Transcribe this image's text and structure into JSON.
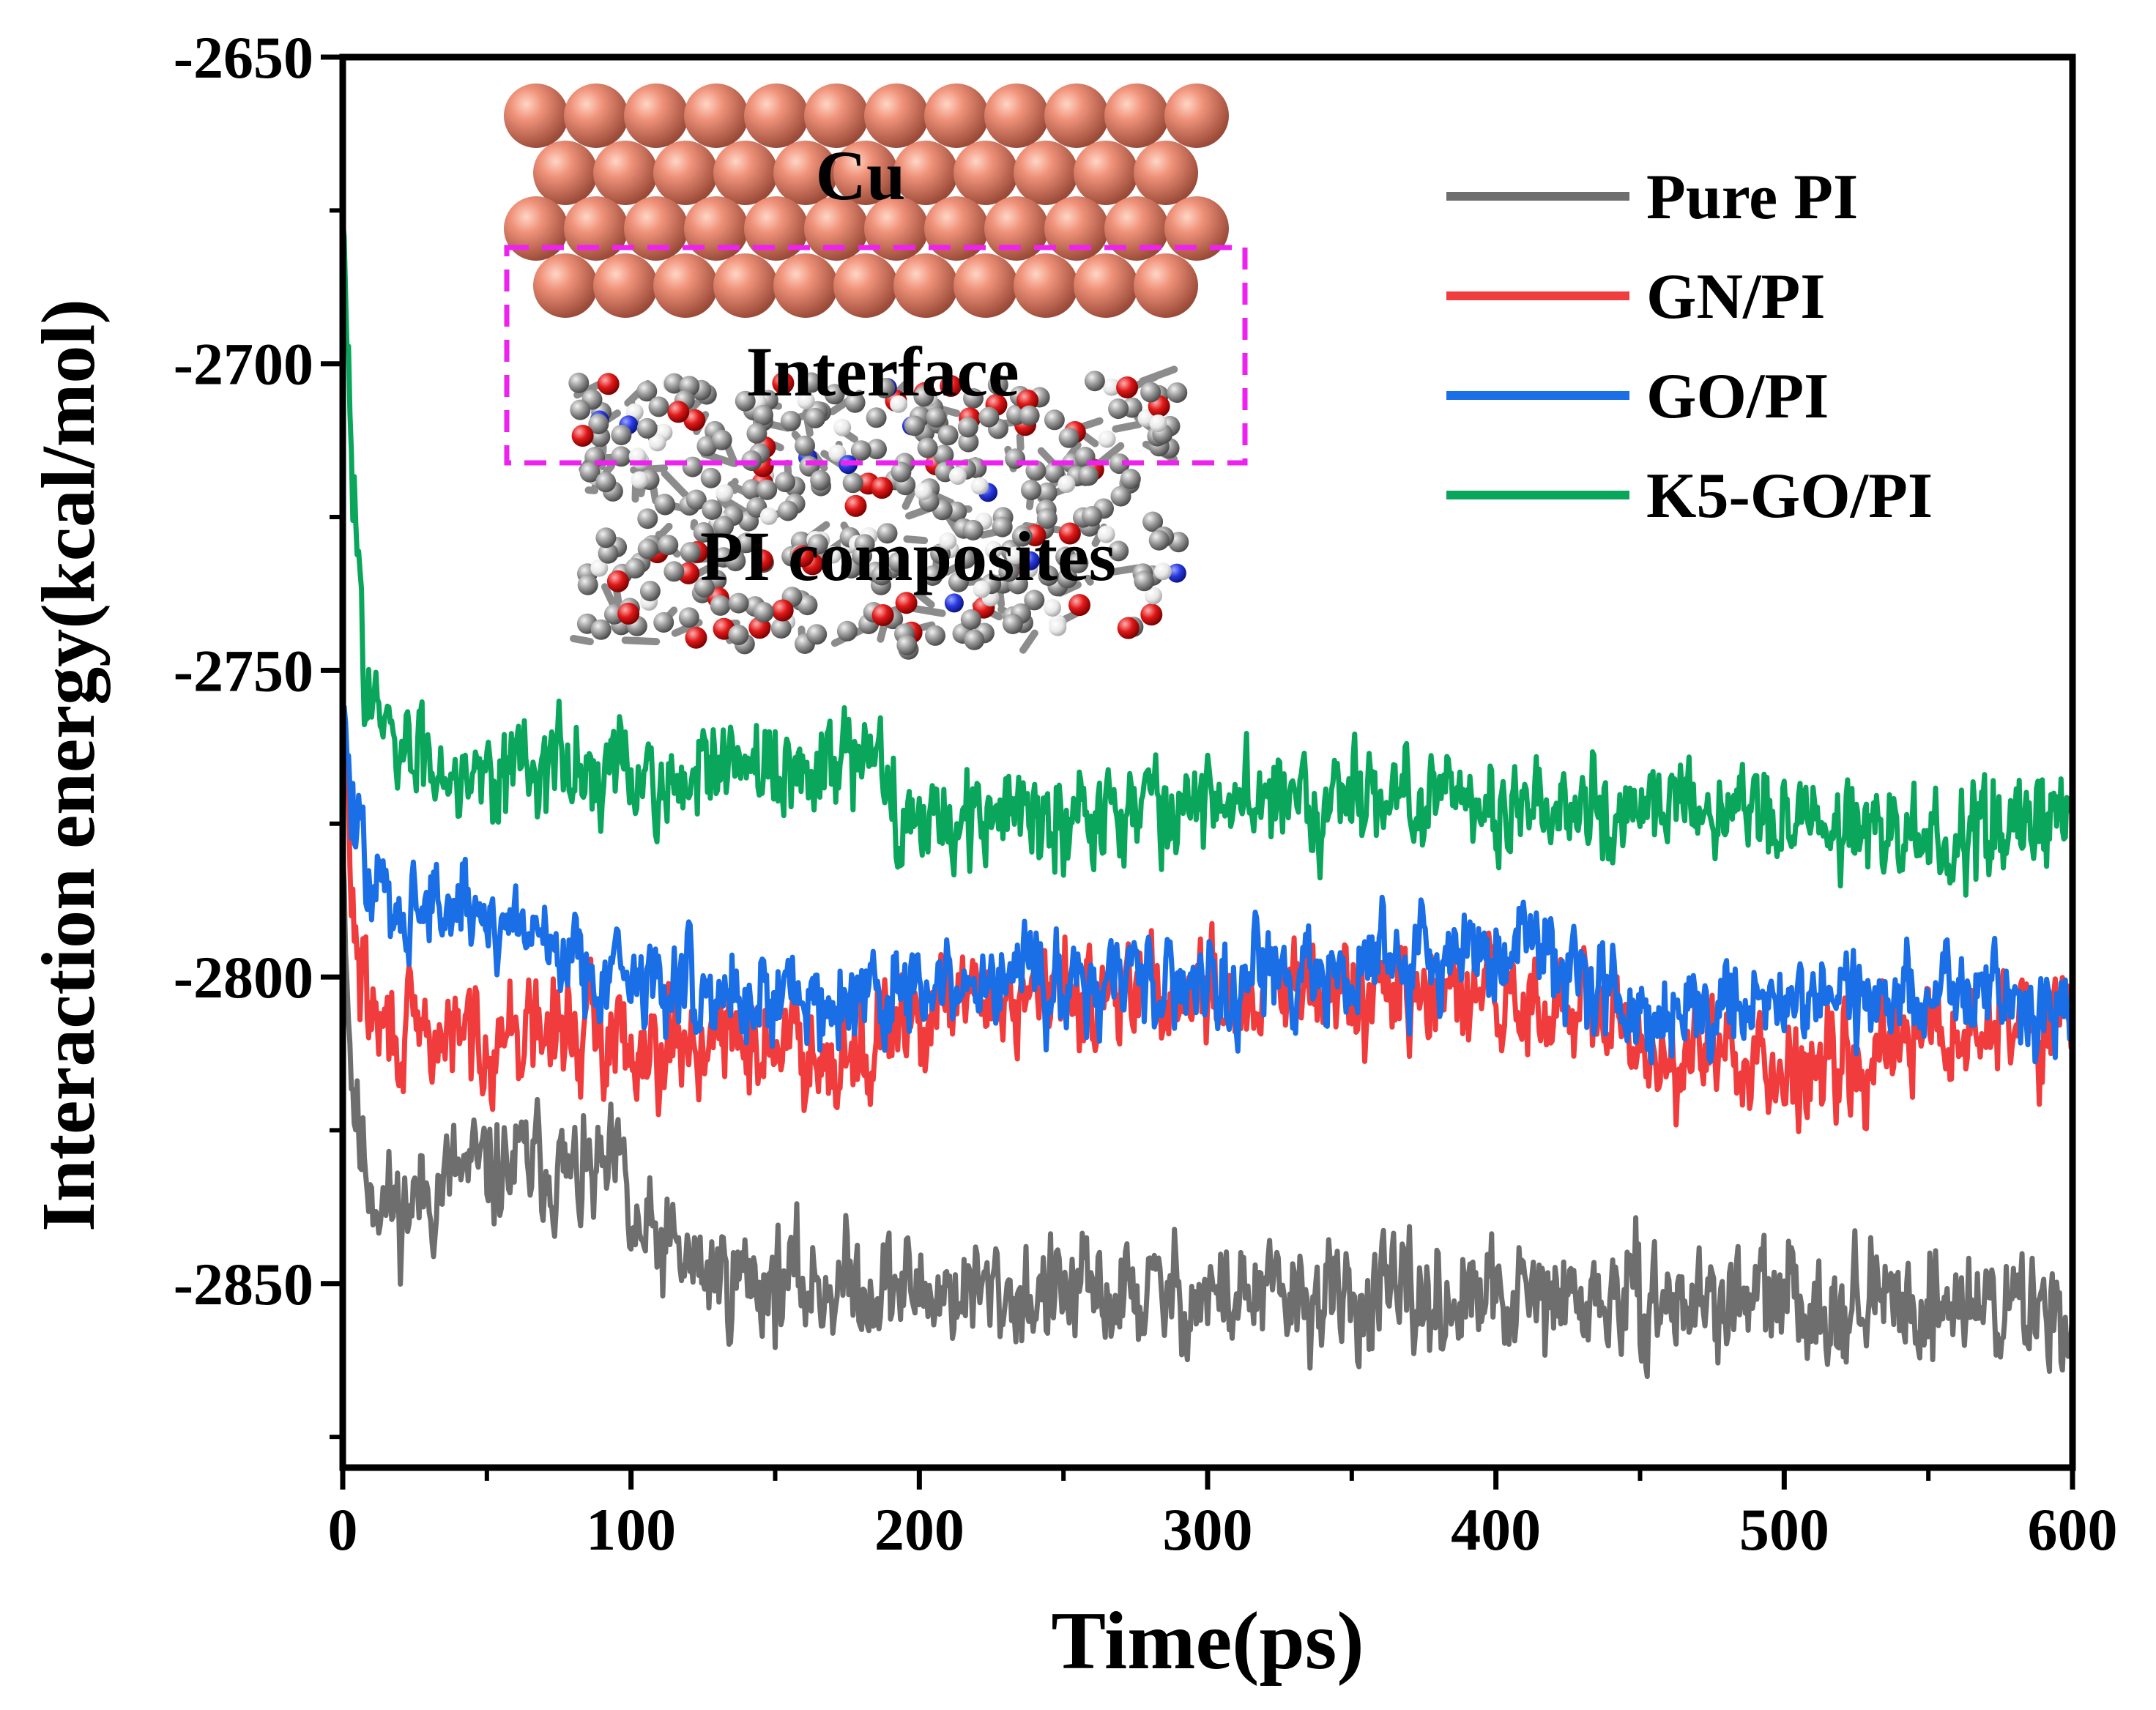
{
  "chart_data": {
    "type": "line",
    "title": "",
    "xlabel": "Time(ps)",
    "ylabel": "Interaction energy(kcal/mol)",
    "xlim": [
      0,
      600
    ],
    "ylim": [
      -2880,
      -2650
    ],
    "xticks": [
      0,
      100,
      200,
      300,
      400,
      500,
      600
    ],
    "xtick_labels": [
      "0",
      "100",
      "200",
      "300",
      "400",
      "500",
      "600"
    ],
    "yticks": [
      -2850,
      -2800,
      -2750,
      -2700,
      -2650
    ],
    "ytick_labels": [
      "-2850",
      "-2800",
      "-2750",
      "-2700",
      "-2650"
    ],
    "grid": false,
    "legend_position": "top-right",
    "series": [
      {
        "name": "Pure PI",
        "color": "#6e6e6e",
        "x": [
          0,
          3,
          6,
          10,
          15,
          20,
          30,
          40,
          50,
          60,
          70,
          80,
          90,
          97,
          100,
          110,
          125,
          140,
          160,
          180,
          200,
          250,
          300,
          350,
          400,
          450,
          500,
          550,
          600
        ],
        "values": [
          -2780,
          -2815,
          -2828,
          -2833,
          -2837,
          -2838,
          -2835,
          -2832,
          -2832,
          -2831,
          -2830,
          -2833,
          -2833,
          -2832,
          -2842,
          -2844,
          -2848,
          -2849,
          -2850,
          -2850,
          -2851,
          -2852,
          -2852,
          -2853,
          -2853,
          -2853,
          -2853,
          -2853,
          -2854
        ],
        "noise": 5.5,
        "seed": 11
      },
      {
        "name": "GN/PI",
        "color": "#f03c3c",
        "x": [
          0,
          3,
          6,
          10,
          15,
          20,
          40,
          60,
          80,
          100,
          120,
          150,
          180,
          200,
          230,
          260,
          300,
          350,
          400,
          430,
          450,
          500,
          550,
          600
        ],
        "values": [
          -2755,
          -2785,
          -2800,
          -2806,
          -2809,
          -2810,
          -2810,
          -2809,
          -2809,
          -2810,
          -2810,
          -2811,
          -2812,
          -2807,
          -2803,
          -2802,
          -2803,
          -2803,
          -2804,
          -2806,
          -2812,
          -2814,
          -2810,
          -2806
        ],
        "noise": 5.2,
        "seed": 29
      },
      {
        "name": "GO/PI",
        "color": "#1a6ee6",
        "x": [
          0,
          3,
          6,
          10,
          15,
          20,
          30,
          40,
          50,
          60,
          70,
          80,
          100,
          120,
          150,
          200,
          250,
          300,
          350,
          400,
          420,
          440,
          460,
          500,
          550,
          600
        ],
        "values": [
          -2756,
          -2772,
          -2780,
          -2785,
          -2787,
          -2788,
          -2788,
          -2789,
          -2790,
          -2791,
          -2793,
          -2797,
          -2800,
          -2802,
          -2803,
          -2803,
          -2800,
          -2800,
          -2799,
          -2796,
          -2795,
          -2803,
          -2805,
          -2803,
          -2803,
          -2802
        ],
        "noise": 4.8,
        "seed": 47
      },
      {
        "name": "K5-GO/PI",
        "color": "#0aa65c",
        "x": [
          0,
          2,
          5,
          8,
          12,
          16,
          20,
          30,
          40,
          60,
          80,
          100,
          120,
          140,
          160,
          175,
          185,
          195,
          220,
          260,
          300,
          350,
          400,
          450,
          500,
          550,
          600
        ],
        "values": [
          -2677,
          -2705,
          -2730,
          -2748,
          -2758,
          -2763,
          -2764,
          -2764,
          -2765,
          -2765,
          -2766,
          -2768,
          -2768,
          -2767,
          -2766,
          -2765,
          -2767,
          -2773,
          -2774,
          -2772,
          -2772,
          -2770,
          -2771,
          -2773,
          -2774,
          -2776,
          -2776
        ],
        "noise": 5.0,
        "seed": 83
      }
    ],
    "annotations": {
      "surface_label": "Cu",
      "interface_label": "Interface",
      "composite_label": "PI composites",
      "interface_box_color": "#ee22ee"
    }
  }
}
